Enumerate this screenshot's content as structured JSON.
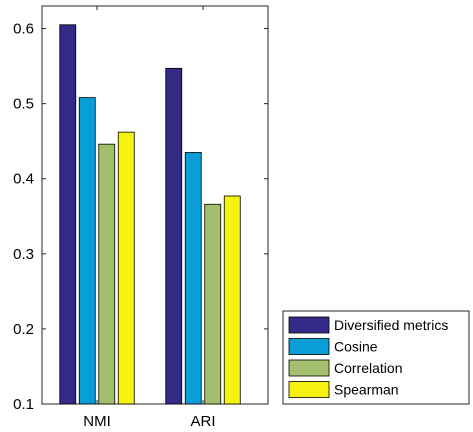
{
  "chart_data": {
    "type": "bar",
    "categories": [
      "NMI",
      "ARI"
    ],
    "series": [
      {
        "name": "Diversified metrics",
        "values": [
          0.605,
          0.547
        ],
        "color": "#332A85"
      },
      {
        "name": "Cosine",
        "values": [
          0.508,
          0.435
        ],
        "color": "#0A9ED6"
      },
      {
        "name": "Correlation",
        "values": [
          0.446,
          0.366
        ],
        "color": "#A3BE6C"
      },
      {
        "name": "Spearman",
        "values": [
          0.462,
          0.377
        ],
        "color": "#F6F10F"
      }
    ],
    "ylim": [
      0.1,
      0.63
    ],
    "yticks": [
      "0.1",
      "0.2",
      "0.3",
      "0.4",
      "0.5",
      "0.6"
    ],
    "title": "",
    "xlabel": "",
    "ylabel": "",
    "grid": false,
    "legend_position": "bottom-right outside plot"
  }
}
